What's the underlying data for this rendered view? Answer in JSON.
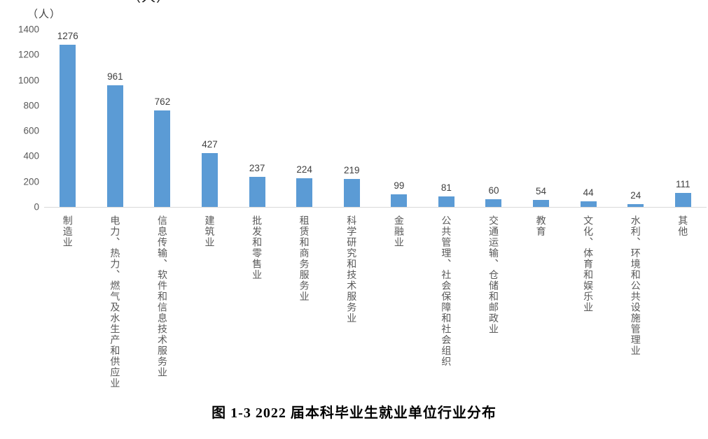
{
  "figure": {
    "clipped_unit_label": "（人）",
    "unit_label": "（人）",
    "caption": "图 1-3 2022 届本科毕业生就业单位行业分布"
  },
  "chart_data": {
    "type": "bar",
    "title": "",
    "unit_label": "（人）",
    "categories": [
      "制造业",
      "电力、热力、燃气及水生产和供应业",
      "信息传输、软件和信息技术服务业",
      "建筑业",
      "批发和零售业",
      "租赁和商务服务业",
      "科学研究和技术服务业",
      "金融业",
      "公共管理、社会保障和社会组织",
      "交通运输、仓储和邮政业",
      "教育",
      "文化、体育和娱乐业",
      "水利、环境和公共设施管理业",
      "其他"
    ],
    "values": [
      1276,
      961,
      762,
      427,
      237,
      224,
      219,
      99,
      81,
      60,
      54,
      44,
      24,
      111
    ],
    "ylim": [
      0,
      1400
    ],
    "yticks": [
      0,
      200,
      400,
      600,
      800,
      1000,
      1200,
      1400
    ],
    "grid": false,
    "legend": false,
    "bar_color": "#5B9BD5",
    "axis_line_color": "#D9D9D9",
    "tick_label_color": "#595959",
    "value_label_color": "#404040",
    "category_label_color": "#595959"
  }
}
